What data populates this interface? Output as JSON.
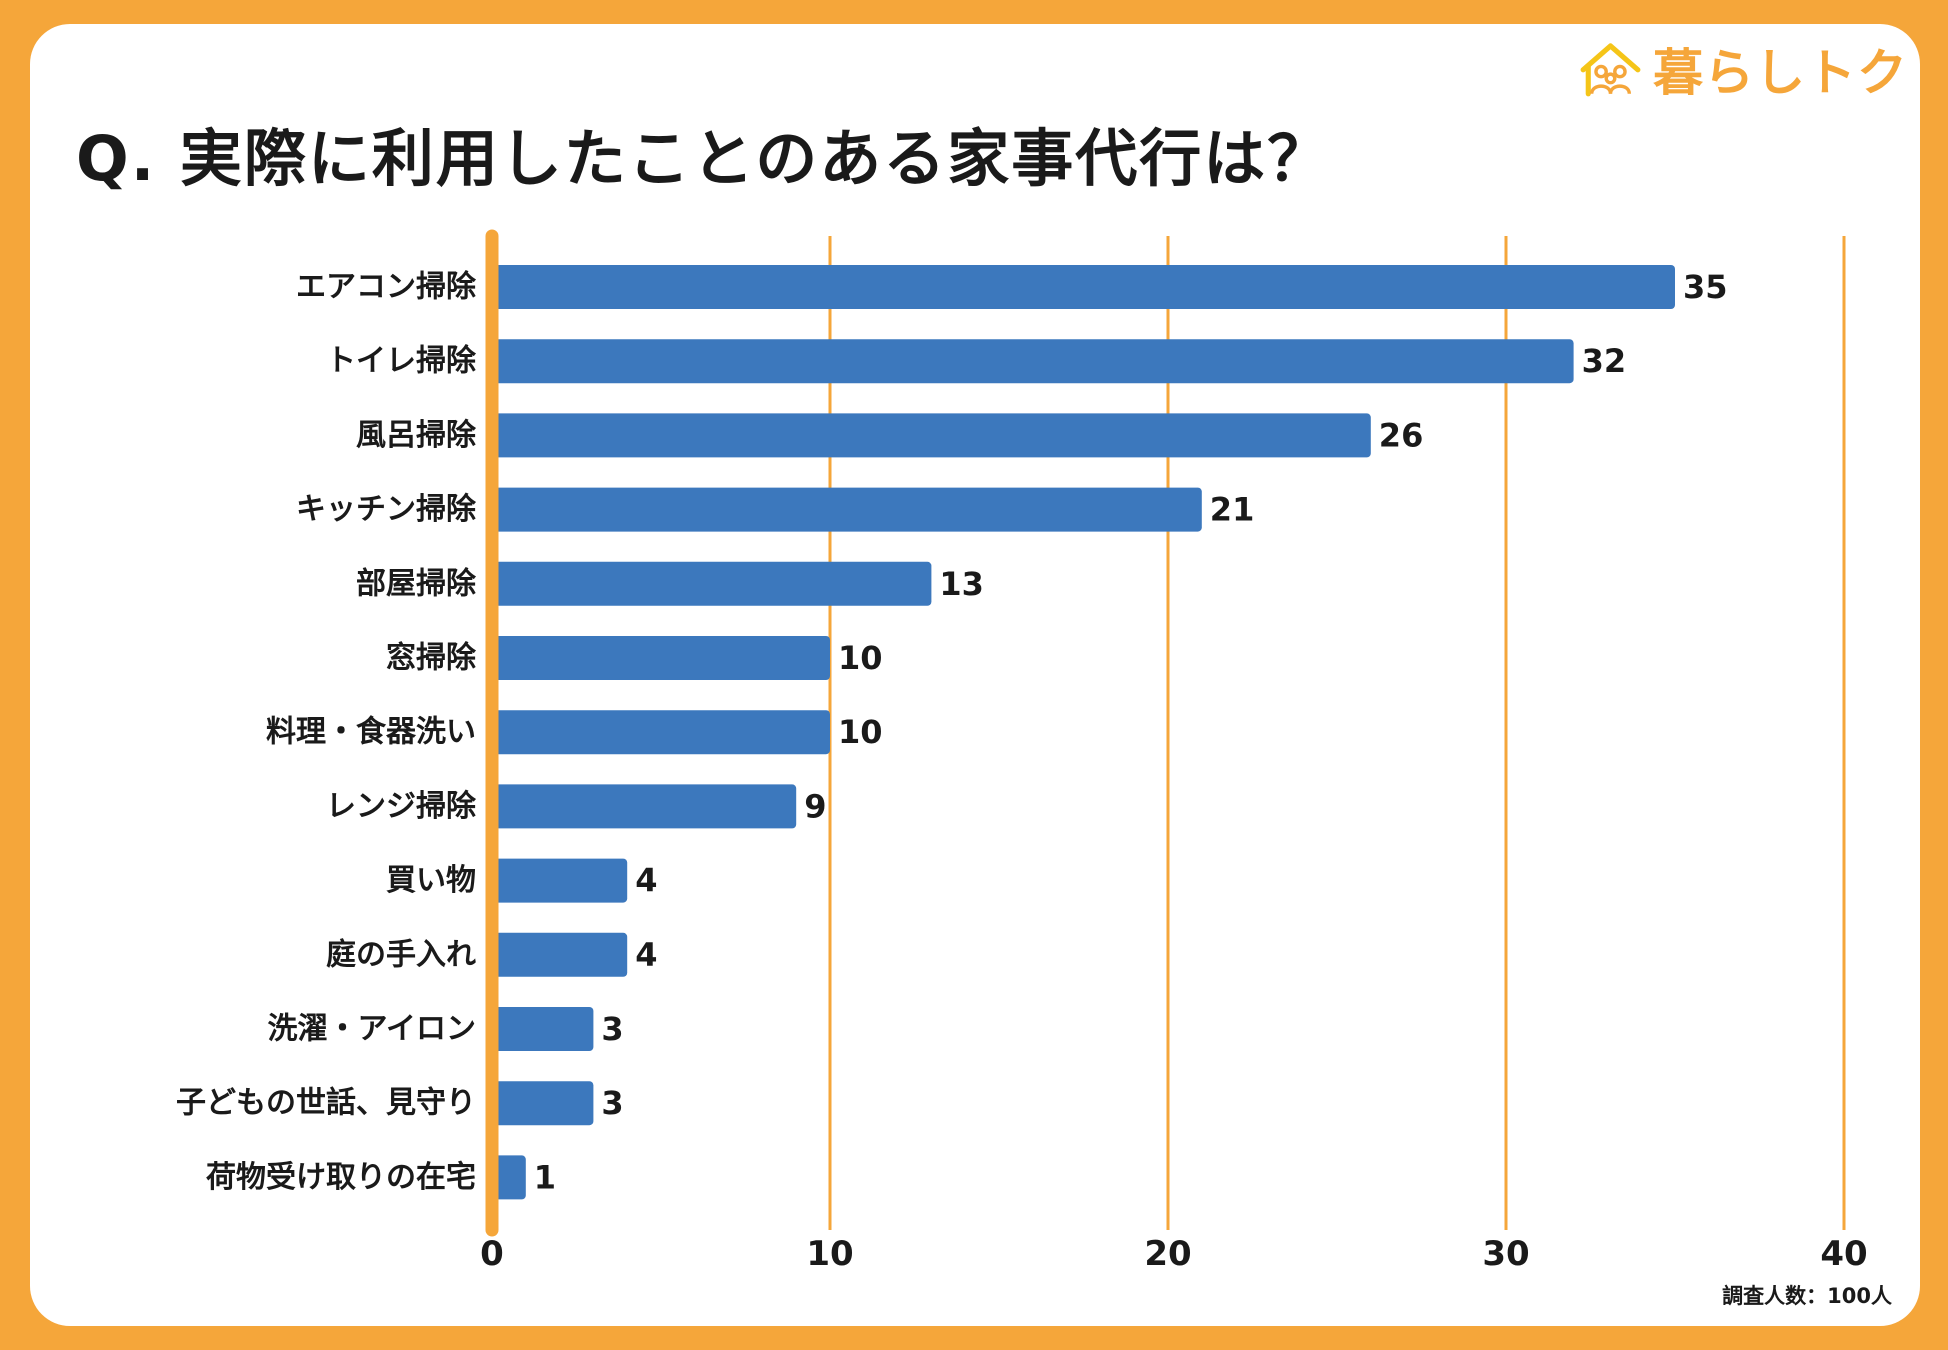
{
  "brand": {
    "name": "暮らしトク",
    "accent": "#F5A63A",
    "bar_color": "#3C78BD",
    "icon": "house-family-icon"
  },
  "header": {
    "title": "Q. 実際に利用したことのある家事代行は？"
  },
  "footer": {
    "note": "調査人数：100人"
  },
  "chart_data": {
    "type": "bar",
    "orientation": "horizontal",
    "title": "Q. 実際に利用したことのある家事代行は？",
    "categories": [
      "エアコン掃除",
      "トイレ掃除",
      "風呂掃除",
      "キッチン掃除",
      "部屋掃除",
      "窓掃除",
      "料理・食器洗い",
      "レンジ掃除",
      "買い物",
      "庭の手入れ",
      "洗濯・アイロン",
      "子どもの世話、見守り",
      "荷物受け取りの在宅"
    ],
    "values": [
      35,
      32,
      26,
      21,
      13,
      10,
      10,
      9,
      4,
      4,
      3,
      3,
      1
    ],
    "xlim": [
      0,
      40
    ],
    "xticks": [
      0,
      10,
      20,
      30,
      40
    ],
    "grid": true,
    "data_labels": true,
    "legend": "none"
  }
}
